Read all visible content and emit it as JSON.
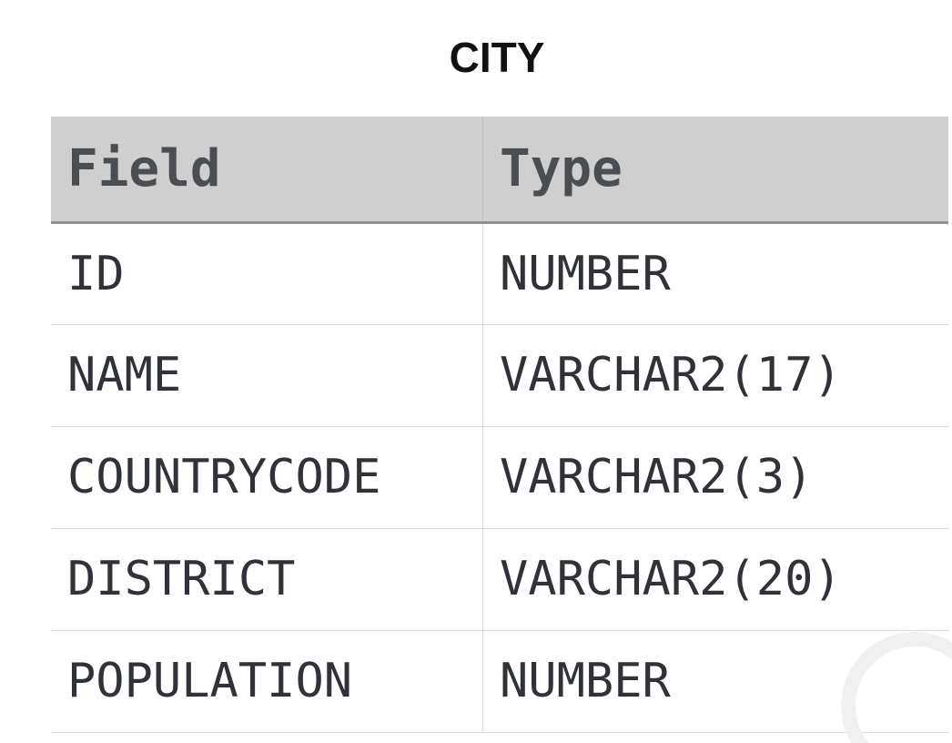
{
  "title": "CITY",
  "table": {
    "headers": {
      "field": "Field",
      "type": "Type"
    },
    "rows": [
      {
        "field": "ID",
        "type": "NUMBER"
      },
      {
        "field": "NAME",
        "type": "VARCHAR2(17)"
      },
      {
        "field": "COUNTRYCODE",
        "type": "VARCHAR2(3)"
      },
      {
        "field": "DISTRICT",
        "type": "VARCHAR2(20)"
      },
      {
        "field": "POPULATION",
        "type": "NUMBER"
      }
    ]
  }
}
